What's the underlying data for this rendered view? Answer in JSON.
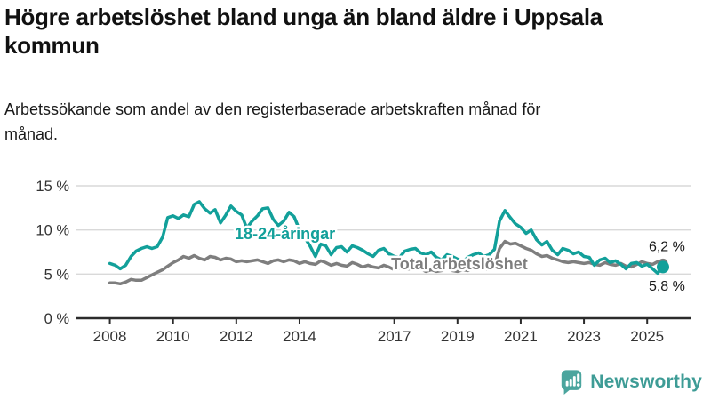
{
  "header": {
    "title": "Högre arbetslöshet bland unga än bland äldre i Uppsala kommun",
    "subtitle": "Arbetssökande som andel av den registerbaserade arbetskraften månad för månad."
  },
  "footer": {
    "brand": "Newsworthy"
  },
  "colors": {
    "young": "#12A09A",
    "total": "#7E7E7E",
    "text": "#1a1a1a",
    "axis": "#2b2b2b",
    "tick_text": "#333333",
    "grid": "#d9d9d9",
    "brand": "#3E9C96",
    "brand_icon": "#4BA59E"
  },
  "chart_data": {
    "type": "line",
    "title": "Högre arbetslöshet bland unga än bland äldre i Uppsala kommun",
    "subtitle": "Arbetssökande som andel av den registerbaserade arbetskraften månad för månad.",
    "xlabel": "",
    "ylabel": "",
    "x_range": [
      2007.0,
      2026.4
    ],
    "y_range": [
      0,
      15
    ],
    "grid": "horizontal",
    "legend_position": "inline-labels",
    "x_ticks": {
      "values": [
        2008,
        2010,
        2012,
        2014,
        2017,
        2019,
        2021,
        2023,
        2025
      ],
      "labels": [
        "2008",
        "2010",
        "2012",
        "2014",
        "2017",
        "2019",
        "2021",
        "2023",
        "2025"
      ]
    },
    "y_ticks": {
      "values": [
        0,
        5,
        10,
        15
      ],
      "labels": [
        "0 %",
        "5 %",
        "10 %",
        "15 %"
      ]
    },
    "series": [
      {
        "name": "Total arbetslöshet",
        "color_key": "total",
        "end_label": "6,2 %",
        "end_value": 6.2,
        "dot_radius": 5.5,
        "x": [
          2008.0,
          2008.17,
          2008.33,
          2008.5,
          2008.67,
          2008.83,
          2009.0,
          2009.17,
          2009.33,
          2009.5,
          2009.67,
          2009.83,
          2010.0,
          2010.17,
          2010.33,
          2010.5,
          2010.67,
          2010.83,
          2011.0,
          2011.17,
          2011.33,
          2011.5,
          2011.67,
          2011.83,
          2012.0,
          2012.17,
          2012.33,
          2012.5,
          2012.67,
          2012.83,
          2013.0,
          2013.17,
          2013.33,
          2013.5,
          2013.67,
          2013.83,
          2014.0,
          2014.17,
          2014.33,
          2014.5,
          2014.67,
          2014.83,
          2015.0,
          2015.17,
          2015.33,
          2015.5,
          2015.67,
          2015.83,
          2016.0,
          2016.17,
          2016.33,
          2016.5,
          2016.67,
          2016.83,
          2017.0,
          2017.17,
          2017.33,
          2017.5,
          2017.67,
          2017.83,
          2018.0,
          2018.17,
          2018.33,
          2018.5,
          2018.67,
          2018.83,
          2019.0,
          2019.17,
          2019.33,
          2019.5,
          2019.67,
          2019.83,
          2020.0,
          2020.17,
          2020.33,
          2020.5,
          2020.67,
          2020.83,
          2021.0,
          2021.17,
          2021.33,
          2021.5,
          2021.67,
          2021.83,
          2022.0,
          2022.17,
          2022.33,
          2022.5,
          2022.67,
          2022.83,
          2023.0,
          2023.17,
          2023.33,
          2023.5,
          2023.67,
          2023.83,
          2024.0,
          2024.17,
          2024.33,
          2024.5,
          2024.67,
          2024.83,
          2025.0,
          2025.17,
          2025.33,
          2025.5
        ],
        "values": [
          4.0,
          4.0,
          3.9,
          4.1,
          4.4,
          4.3,
          4.3,
          4.6,
          4.9,
          5.2,
          5.5,
          5.9,
          6.3,
          6.6,
          7.0,
          6.8,
          7.1,
          6.8,
          6.6,
          7.0,
          6.9,
          6.6,
          6.8,
          6.7,
          6.4,
          6.5,
          6.4,
          6.5,
          6.6,
          6.4,
          6.2,
          6.5,
          6.6,
          6.4,
          6.6,
          6.5,
          6.2,
          6.4,
          6.2,
          6.1,
          6.5,
          6.3,
          6.0,
          6.2,
          6.0,
          5.9,
          6.3,
          6.1,
          5.8,
          6.0,
          5.8,
          5.7,
          6.0,
          5.8,
          5.5,
          5.7,
          5.5,
          5.6,
          5.8,
          5.6,
          5.3,
          5.5,
          5.3,
          5.4,
          5.6,
          5.4,
          5.3,
          5.5,
          5.4,
          5.6,
          5.8,
          5.6,
          5.5,
          5.9,
          7.9,
          8.7,
          8.4,
          8.5,
          8.2,
          7.9,
          7.7,
          7.3,
          7.0,
          7.1,
          6.8,
          6.6,
          6.4,
          6.3,
          6.4,
          6.3,
          6.2,
          6.3,
          6.1,
          6.0,
          6.3,
          6.1,
          6.0,
          6.2,
          5.9,
          5.8,
          6.1,
          6.4,
          6.2,
          6.1,
          6.4,
          6.2
        ]
      },
      {
        "name": "18-24-åringar",
        "color_key": "young",
        "end_label": "5,8 %",
        "end_value": 5.8,
        "dot_radius": 7,
        "x": [
          2008.0,
          2008.17,
          2008.33,
          2008.5,
          2008.67,
          2008.83,
          2009.0,
          2009.17,
          2009.33,
          2009.5,
          2009.67,
          2009.83,
          2010.0,
          2010.17,
          2010.33,
          2010.5,
          2010.67,
          2010.83,
          2011.0,
          2011.17,
          2011.33,
          2011.5,
          2011.67,
          2011.83,
          2012.0,
          2012.17,
          2012.33,
          2012.5,
          2012.67,
          2012.83,
          2013.0,
          2013.17,
          2013.33,
          2013.5,
          2013.67,
          2013.83,
          2014.0,
          2014.17,
          2014.33,
          2014.5,
          2014.67,
          2014.83,
          2015.0,
          2015.17,
          2015.33,
          2015.5,
          2015.67,
          2015.83,
          2016.0,
          2016.17,
          2016.33,
          2016.5,
          2016.67,
          2016.83,
          2017.0,
          2017.17,
          2017.33,
          2017.5,
          2017.67,
          2017.83,
          2018.0,
          2018.17,
          2018.33,
          2018.5,
          2018.67,
          2018.83,
          2019.0,
          2019.17,
          2019.33,
          2019.5,
          2019.67,
          2019.83,
          2020.0,
          2020.17,
          2020.33,
          2020.5,
          2020.67,
          2020.83,
          2021.0,
          2021.17,
          2021.33,
          2021.5,
          2021.67,
          2021.83,
          2022.0,
          2022.17,
          2022.33,
          2022.5,
          2022.67,
          2022.83,
          2023.0,
          2023.17,
          2023.33,
          2023.5,
          2023.67,
          2023.83,
          2024.0,
          2024.17,
          2024.33,
          2024.5,
          2024.67,
          2024.83,
          2025.0,
          2025.17,
          2025.33,
          2025.5
        ],
        "values": [
          6.2,
          6.0,
          5.6,
          6.0,
          7.0,
          7.6,
          7.9,
          8.1,
          7.9,
          8.1,
          9.2,
          11.4,
          11.6,
          11.3,
          11.7,
          11.5,
          12.9,
          13.2,
          12.4,
          11.9,
          12.3,
          10.8,
          11.7,
          12.7,
          12.1,
          11.7,
          10.2,
          11.0,
          11.6,
          12.4,
          12.5,
          11.2,
          10.5,
          11.0,
          12.0,
          11.5,
          10.0,
          9.1,
          8.2,
          7.0,
          8.4,
          8.2,
          7.2,
          8.0,
          8.1,
          7.5,
          8.2,
          8.0,
          7.7,
          7.3,
          7.0,
          7.7,
          7.9,
          7.3,
          7.0,
          6.9,
          7.6,
          7.8,
          7.9,
          7.4,
          7.2,
          7.5,
          6.9,
          6.6,
          7.2,
          7.0,
          6.7,
          6.4,
          6.9,
          7.2,
          7.4,
          7.0,
          7.2,
          7.8,
          11.0,
          12.2,
          11.4,
          10.7,
          10.3,
          9.6,
          10.0,
          8.9,
          8.3,
          8.7,
          7.7,
          7.2,
          7.9,
          7.7,
          7.3,
          7.5,
          7.0,
          6.9,
          6.0,
          6.6,
          6.8,
          6.3,
          6.5,
          6.1,
          5.6,
          6.2,
          6.3,
          5.9,
          6.1,
          5.6,
          5.1,
          5.8
        ]
      }
    ],
    "annotations": [
      {
        "name": "series-label-young",
        "text": "18-24-åringar",
        "x": 2011.95,
        "y": 8.95,
        "anchor": "start",
        "color_key": "young",
        "size": 18,
        "bold": true,
        "halo": true
      },
      {
        "name": "series-label-total",
        "text": "Total arbetslöshet",
        "x": 2016.9,
        "y": 5.55,
        "anchor": "start",
        "color_key": "total",
        "size": 18,
        "bold": true,
        "halo": true
      },
      {
        "name": "end-value-total",
        "text": "6,2 %",
        "x": 2026.2,
        "y": 7.6,
        "anchor": "end",
        "color_key": "text",
        "size": 16,
        "bold": false,
        "halo": false
      },
      {
        "name": "end-value-young",
        "text": "5,8 %",
        "x": 2026.2,
        "y": 3.1,
        "anchor": "end",
        "color_key": "text",
        "size": 16,
        "bold": false,
        "halo": false
      }
    ]
  }
}
